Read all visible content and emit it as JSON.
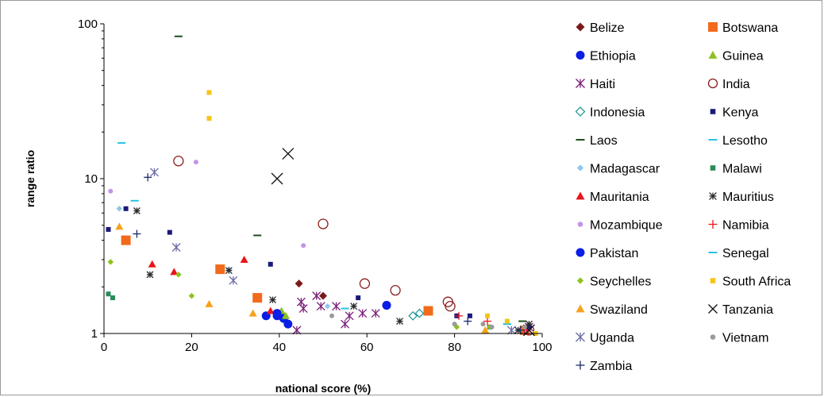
{
  "chart_data": {
    "type": "scatter",
    "xlabel": "national score (%)",
    "ylabel": "range ratio",
    "xlim": [
      0,
      100
    ],
    "ylim": [
      1,
      100
    ],
    "yscale": "log",
    "x_ticks": [
      "0",
      "20",
      "40",
      "60",
      "80",
      "100"
    ],
    "y_ticks": [
      "1",
      "10",
      "100"
    ],
    "x_tick_values": [
      0,
      20,
      40,
      60,
      80,
      100
    ],
    "y_tick_values": [
      1,
      10,
      100
    ],
    "grid": false,
    "legend_position": "right",
    "series": [
      {
        "name": "Belize",
        "marker": "diamond",
        "color": "#7b1a1a",
        "points": [
          [
            44.5,
            2.1
          ],
          [
            50,
            1.75
          ]
        ]
      },
      {
        "name": "Botswana",
        "marker": "square",
        "color": "#f26a1b",
        "points": [
          [
            5,
            4.0
          ],
          [
            26.5,
            2.6
          ],
          [
            35,
            1.7
          ],
          [
            74,
            1.4
          ],
          [
            96,
            1.05
          ]
        ]
      },
      {
        "name": "Ethiopia",
        "marker": "circle",
        "color": "#0a1ee6",
        "points": [
          [
            37,
            1.3
          ],
          [
            39.5,
            1.3
          ],
          [
            40.5,
            1.3
          ],
          [
            41,
            1.25
          ],
          [
            42,
            1.15
          ],
          [
            64.5,
            1.52
          ]
        ]
      },
      {
        "name": "Guinea",
        "marker": "triangle",
        "color": "#8dc21f",
        "points": [
          [
            40.5,
            1.4
          ],
          [
            41.5,
            1.3
          ]
        ]
      },
      {
        "name": "Haiti",
        "marker": "asterisk",
        "color": "#7a1e78",
        "points": [
          [
            44,
            1.05
          ],
          [
            45,
            1.6
          ],
          [
            45.5,
            1.45
          ],
          [
            48.5,
            1.75
          ],
          [
            49.5,
            1.5
          ],
          [
            53,
            1.5
          ],
          [
            55,
            1.15
          ],
          [
            56,
            1.3
          ],
          [
            59,
            1.35
          ],
          [
            62,
            1.35
          ],
          [
            97,
            1.1
          ]
        ]
      },
      {
        "name": "India",
        "marker": "open-circle",
        "color": "#8b1c1c",
        "points": [
          [
            17,
            13
          ],
          [
            50,
            5.1
          ],
          [
            59.5,
            2.1
          ],
          [
            66.5,
            1.9
          ],
          [
            78.5,
            1.6
          ],
          [
            79,
            1.5
          ],
          [
            97,
            1.05
          ]
        ]
      },
      {
        "name": "Indonesia",
        "marker": "open-diamond",
        "color": "#2a9a9a",
        "points": [
          [
            70.5,
            1.3
          ],
          [
            72,
            1.35
          ]
        ]
      },
      {
        "name": "Kenya",
        "marker": "small-square",
        "color": "#1a1a7a",
        "points": [
          [
            1,
            4.7
          ],
          [
            5,
            6.4
          ],
          [
            15,
            4.5
          ],
          [
            38,
            2.8
          ],
          [
            58,
            1.7
          ],
          [
            80.5,
            1.3
          ],
          [
            83.5,
            1.3
          ],
          [
            97,
            1.1
          ]
        ]
      },
      {
        "name": "Laos",
        "marker": "dash",
        "color": "#1b4d1b",
        "points": [
          [
            17,
            83
          ],
          [
            35,
            4.3
          ],
          [
            95.5,
            1.2
          ]
        ]
      },
      {
        "name": "Lesotho",
        "marker": "dash",
        "color": "#25c3e8",
        "points": [
          [
            4,
            17
          ],
          [
            7,
            7.2
          ],
          [
            55,
            1.45
          ],
          [
            92,
            1.15
          ]
        ]
      },
      {
        "name": "Madagascar",
        "marker": "small-diamond",
        "color": "#8fc7ec",
        "points": [
          [
            3.5,
            6.4
          ],
          [
            28.5,
            2.6
          ],
          [
            51,
            1.5
          ]
        ]
      },
      {
        "name": "Malawi",
        "marker": "small-square",
        "color": "#2a8a5a",
        "points": [
          [
            1,
            1.8
          ],
          [
            2,
            1.7
          ],
          [
            88,
            1.1
          ]
        ]
      },
      {
        "name": "Mauritania",
        "marker": "triangle",
        "color": "#e8161b",
        "points": [
          [
            11,
            2.8
          ],
          [
            16,
            2.5
          ],
          [
            32,
            3.0
          ],
          [
            38,
            1.4
          ]
        ]
      },
      {
        "name": "Mauritius",
        "marker": "star",
        "color": "#2a2a2a",
        "points": [
          [
            7.5,
            6.2
          ],
          [
            10.5,
            2.4
          ],
          [
            28.5,
            2.55
          ],
          [
            38.5,
            1.65
          ],
          [
            57,
            1.5
          ],
          [
            67.5,
            1.2
          ],
          [
            94.5,
            1.05
          ],
          [
            97,
            1.15
          ]
        ]
      },
      {
        "name": "Mozambique",
        "marker": "small-circle",
        "color": "#c495e8",
        "points": [
          [
            1.5,
            8.3
          ],
          [
            21,
            12.8
          ],
          [
            45.5,
            3.7
          ],
          [
            96.5,
            1.05
          ]
        ]
      },
      {
        "name": "Namibia",
        "marker": "plus",
        "color": "#e8161b",
        "points": [
          [
            81,
            1.3
          ],
          [
            87.5,
            1.2
          ],
          [
            96.5,
            1.05
          ]
        ]
      },
      {
        "name": "Pakistan",
        "marker": "circle",
        "color": "#0a1ee6",
        "points": [
          [
            39.5,
            1.35
          ],
          [
            64.5,
            1.52
          ]
        ]
      },
      {
        "name": "Senegal",
        "marker": "dash",
        "color": "#25c3e8",
        "points": [
          [
            92,
            1.15
          ]
        ]
      },
      {
        "name": "Seychelles",
        "marker": "small-diamond",
        "color": "#8dc21f",
        "points": [
          [
            1.5,
            2.9
          ],
          [
            17,
            2.4
          ],
          [
            20,
            1.75
          ],
          [
            80.5,
            1.1
          ],
          [
            88,
            1.1
          ]
        ]
      },
      {
        "name": "South Africa",
        "marker": "small-square",
        "color": "#f5c518",
        "points": [
          [
            24,
            36
          ],
          [
            24,
            24.5
          ],
          [
            87.5,
            1.3
          ],
          [
            92,
            1.2
          ],
          [
            98.5,
            1.0
          ]
        ]
      },
      {
        "name": "Swaziland",
        "marker": "triangle",
        "color": "#f6a21a",
        "points": [
          [
            3.5,
            4.9
          ],
          [
            24,
            1.55
          ],
          [
            34,
            1.35
          ],
          [
            87,
            1.05
          ]
        ]
      },
      {
        "name": "Tanzania",
        "marker": "x",
        "color": "#111111",
        "points": [
          [
            39.5,
            10
          ],
          [
            42,
            14.5
          ],
          [
            97,
            1.05
          ]
        ]
      },
      {
        "name": "Uganda",
        "marker": "asterisk",
        "color": "#6a6aa8",
        "points": [
          [
            11.5,
            11
          ],
          [
            16.5,
            3.6
          ],
          [
            29.5,
            2.2
          ],
          [
            93,
            1.05
          ]
        ]
      },
      {
        "name": "Vietnam",
        "marker": "small-circle",
        "color": "#9a9a9a",
        "points": [
          [
            52,
            1.3
          ],
          [
            80,
            1.15
          ],
          [
            86.5,
            1.15
          ],
          [
            88.5,
            1.1
          ],
          [
            96,
            1.1
          ]
        ]
      },
      {
        "name": "Zambia",
        "marker": "plus",
        "color": "#1a2a6a",
        "points": [
          [
            7.5,
            4.4
          ],
          [
            10,
            10.2
          ],
          [
            83,
            1.2
          ],
          [
            95,
            1.05
          ]
        ]
      }
    ]
  }
}
